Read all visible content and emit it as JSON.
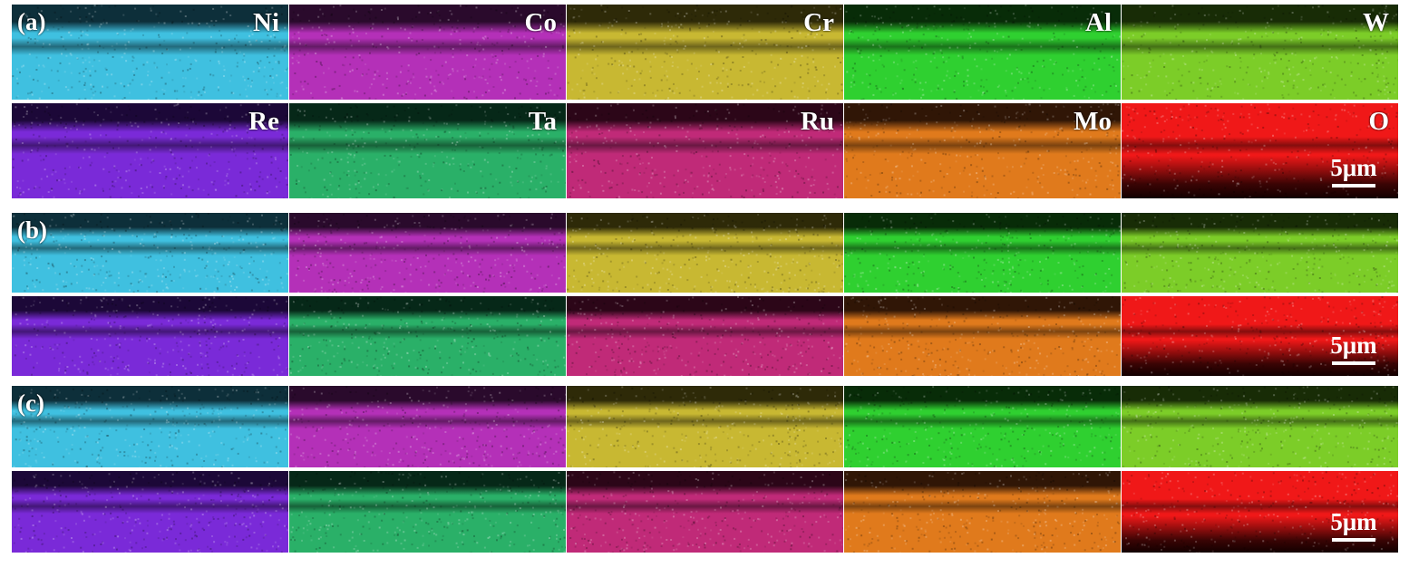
{
  "panels": [
    {
      "label": "(a)",
      "show_element_labels": true
    },
    {
      "label": "(b)",
      "show_element_labels": false
    },
    {
      "label": "(c)",
      "show_element_labels": false
    }
  ],
  "elements_row1": [
    {
      "name": "Ni",
      "color": "#3fc0e0",
      "dark": "#0d2f3a"
    },
    {
      "name": "Co",
      "color": "#b430b8",
      "dark": "#2a0a2c"
    },
    {
      "name": "Cr",
      "color": "#c8b832",
      "dark": "#2e2a08"
    },
    {
      "name": "Al",
      "color": "#2fd030",
      "dark": "#082c08"
    },
    {
      "name": "W",
      "color": "#7ccd28",
      "dark": "#182c06"
    }
  ],
  "elements_row2": [
    {
      "name": "Re",
      "color": "#7a2ad8",
      "dark": "#1c0838"
    },
    {
      "name": "Ta",
      "color": "#2ab068",
      "dark": "#062818"
    },
    {
      "name": "Ru",
      "color": "#c02a78",
      "dark": "#2c0618"
    },
    {
      "name": "Mo",
      "color": "#e07a1c",
      "dark": "#301606"
    },
    {
      "name": "O",
      "color": "#f01818",
      "dark": "#3a0404"
    }
  ],
  "scale_bar_label": "5μm"
}
